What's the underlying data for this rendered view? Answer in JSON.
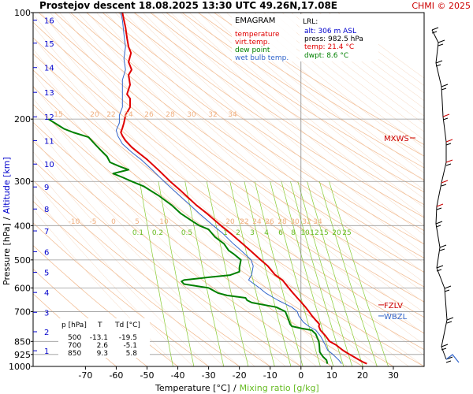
{
  "header": {
    "title": "Prostejov  descent  18.08.2025 13:30 UTC  49.26N,17.08E",
    "credit": "CHMI © 2025"
  },
  "legend": {
    "title": "EMAGRAM",
    "entries": [
      {
        "label": "temperature",
        "color": "#e00000"
      },
      {
        "label": "virt.temp.",
        "color": "#e00000"
      },
      {
        "label": "dew point",
        "color": "#008000"
      },
      {
        "label": "wet bulb temp.",
        "color": "#3366cc"
      }
    ]
  },
  "lrl": {
    "title": "LRL:",
    "alt": "alt: 306 m ASL",
    "press": "press: 982.5 hPa",
    "temp": "temp: 21.4 °C",
    "dwpt": "dwpt: 8.6 °C"
  },
  "levels_table": {
    "headers": [
      "p [hPa]",
      "T",
      "Td [°C]"
    ],
    "rows": [
      [
        "500",
        "-13.1",
        "-19.5"
      ],
      [
        "700",
        "2.6",
        "-5.1"
      ],
      [
        "850",
        "9.3",
        "5.8"
      ]
    ]
  },
  "markers": [
    {
      "label": "MXWS",
      "color": "#cc0000"
    },
    {
      "label": "FZLV",
      "color": "#cc0000"
    },
    {
      "label": "WBZL",
      "color": "#3366cc"
    }
  ],
  "colors": {
    "temperature": "#e00000",
    "dewpoint": "#008000",
    "wetbulb": "#3366cc",
    "isobar": "#999999",
    "altitude_label": "#0000cc",
    "mixing_ratio": "#88cc33",
    "dry_adiabat": "#f0b080",
    "isotherm": "#f2c8a8"
  },
  "chart_data": {
    "type": "line",
    "title": "Prostejov  descent  18.08.2025 13:30 UTC  49.26N,17.08E",
    "xlabel": "Temperature [°C]",
    "xlabel_sep": "/",
    "xlabel2": "Mixing ratio [g/kg]",
    "ylabel": "Pressure [hPa]",
    "ylabel_sep": "/",
    "ylabel2": "Altitude [km]",
    "x_scale": "linear",
    "y_scale": "log-pressure",
    "xlim": [
      -87,
      40
    ],
    "ylim": [
      1000,
      100
    ],
    "x_ticks": [
      -70,
      -60,
      -50,
      -40,
      -30,
      -20,
      -10,
      0,
      10,
      20,
      30
    ],
    "pressure_ticks": [
      100,
      200,
      300,
      400,
      500,
      600,
      700,
      850,
      925,
      1000
    ],
    "altitude_ticks": [
      {
        "km": 1,
        "p": 903
      },
      {
        "km": 2,
        "p": 798
      },
      {
        "km": 3,
        "p": 703
      },
      {
        "km": 4,
        "p": 618
      },
      {
        "km": 5,
        "p": 542
      },
      {
        "km": 6,
        "p": 474
      },
      {
        "km": 7,
        "p": 414
      },
      {
        "km": 8,
        "p": 359
      },
      {
        "km": 9,
        "p": 311
      },
      {
        "km": 10,
        "p": 268
      },
      {
        "km": 11,
        "p": 230
      },
      {
        "km": 12,
        "p": 197
      },
      {
        "km": 13,
        "p": 168
      },
      {
        "km": 14,
        "p": 143
      },
      {
        "km": 15,
        "p": 122
      },
      {
        "km": 16,
        "p": 105
      }
    ],
    "mixing_ratio_labels": [
      "0.1",
      "0.2",
      "0.5",
      "1",
      "2",
      "3",
      "4",
      "6",
      "8",
      "10",
      "12",
      "15",
      "20",
      "25"
    ],
    "isotherm_labels_lower": [
      "-10",
      "-5",
      "0",
      "5",
      "10",
      "20",
      "22",
      "24",
      "26",
      "28",
      "30",
      "32",
      "34"
    ],
    "isotherm_labels_upper": [
      "15",
      "20",
      "22",
      "24",
      "26",
      "28",
      "30",
      "32",
      "34"
    ],
    "series": [
      {
        "key": "temperature",
        "name": "temperature",
        "points": [
          [
            982.5,
            21.4
          ],
          [
            975,
            20.5
          ],
          [
            960,
            19
          ],
          [
            925,
            15.8
          ],
          [
            900,
            13.6
          ],
          [
            870,
            11.4
          ],
          [
            850,
            9.3
          ],
          [
            820,
            8
          ],
          [
            790,
            6.3
          ],
          [
            770,
            5.8
          ],
          [
            760,
            6
          ],
          [
            740,
            4.8
          ],
          [
            720,
            3.6
          ],
          [
            700,
            2.6
          ],
          [
            680,
            1.5
          ],
          [
            650,
            -0.5
          ],
          [
            620,
            -2.6
          ],
          [
            600,
            -4
          ],
          [
            570,
            -6
          ],
          [
            550,
            -8.5
          ],
          [
            520,
            -10.8
          ],
          [
            500,
            -13.1
          ],
          [
            470,
            -16.5
          ],
          [
            450,
            -19
          ],
          [
            420,
            -23
          ],
          [
            400,
            -26
          ],
          [
            370,
            -30.5
          ],
          [
            350,
            -34
          ],
          [
            320,
            -38.8
          ],
          [
            300,
            -42.5
          ],
          [
            280,
            -46
          ],
          [
            260,
            -50
          ],
          [
            248,
            -53
          ],
          [
            240,
            -55
          ],
          [
            230,
            -57
          ],
          [
            223,
            -58
          ],
          [
            218,
            -58.5
          ],
          [
            212,
            -58
          ],
          [
            205,
            -57.5
          ],
          [
            195,
            -57
          ],
          [
            185,
            -55.5
          ],
          [
            175,
            -55.5
          ],
          [
            170,
            -56.5
          ],
          [
            160,
            -55.5
          ],
          [
            150,
            -56
          ],
          [
            145,
            -55
          ],
          [
            138,
            -56
          ],
          [
            130,
            -55.2
          ],
          [
            125,
            -56
          ],
          [
            118,
            -56.5
          ],
          [
            110,
            -57
          ],
          [
            105,
            -57.5
          ],
          [
            100,
            -58
          ]
        ]
      },
      {
        "key": "dewpoint",
        "name": "dew point",
        "points": [
          [
            982.5,
            8.6
          ],
          [
            960,
            8.3
          ],
          [
            940,
            7.2
          ],
          [
            925,
            6.6
          ],
          [
            910,
            6.1
          ],
          [
            880,
            6
          ],
          [
            860,
            5.9
          ],
          [
            850,
            5.8
          ],
          [
            830,
            5.3
          ],
          [
            810,
            4.8
          ],
          [
            790,
            3.5
          ],
          [
            780,
            0
          ],
          [
            770,
            -3
          ],
          [
            760,
            -3.5
          ],
          [
            740,
            -4
          ],
          [
            720,
            -4.5
          ],
          [
            700,
            -5.1
          ],
          [
            680,
            -8
          ],
          [
            660,
            -16
          ],
          [
            650,
            -17.5
          ],
          [
            640,
            -18
          ],
          [
            630,
            -24
          ],
          [
            620,
            -27
          ],
          [
            600,
            -30
          ],
          [
            585,
            -38
          ],
          [
            575,
            -38.8
          ],
          [
            570,
            -38
          ],
          [
            560,
            -30
          ],
          [
            552,
            -23
          ],
          [
            540,
            -20
          ],
          [
            525,
            -20
          ],
          [
            500,
            -19.5
          ],
          [
            480,
            -22
          ],
          [
            470,
            -23.5
          ],
          [
            450,
            -25
          ],
          [
            430,
            -28
          ],
          [
            410,
            -30
          ],
          [
            400,
            -33
          ],
          [
            390,
            -35
          ],
          [
            370,
            -39
          ],
          [
            350,
            -42
          ],
          [
            330,
            -46
          ],
          [
            310,
            -51
          ],
          [
            300,
            -55
          ],
          [
            292,
            -58
          ],
          [
            285,
            -61
          ],
          [
            278,
            -56
          ],
          [
            272,
            -59
          ],
          [
            265,
            -62
          ],
          [
            255,
            -63
          ],
          [
            245,
            -65
          ],
          [
            235,
            -67
          ],
          [
            225,
            -69
          ],
          [
            218,
            -74
          ],
          [
            213,
            -77
          ],
          [
            205,
            -80
          ],
          [
            200,
            -82
          ]
        ]
      },
      {
        "key": "wetbulb",
        "name": "wet bulb temp.",
        "points": [
          [
            982.5,
            13.2
          ],
          [
            960,
            12.3
          ],
          [
            925,
            10.4
          ],
          [
            900,
            8.7
          ],
          [
            870,
            7.9
          ],
          [
            850,
            7.3
          ],
          [
            820,
            6.3
          ],
          [
            790,
            4.8
          ],
          [
            770,
            2.5
          ],
          [
            750,
            0.8
          ],
          [
            720,
            -0.7
          ],
          [
            700,
            -1.2
          ],
          [
            680,
            -3
          ],
          [
            650,
            -7.5
          ],
          [
            620,
            -11.5
          ],
          [
            600,
            -13.5
          ],
          [
            570,
            -17
          ],
          [
            550,
            -16
          ],
          [
            520,
            -15.5
          ],
          [
            500,
            -16.2
          ],
          [
            470,
            -19.5
          ],
          [
            450,
            -22
          ],
          [
            420,
            -25.5
          ],
          [
            400,
            -28.5
          ],
          [
            370,
            -33
          ],
          [
            350,
            -36
          ],
          [
            320,
            -41
          ],
          [
            300,
            -44.5
          ],
          [
            280,
            -48
          ],
          [
            260,
            -52
          ],
          [
            248,
            -55
          ],
          [
            235,
            -58
          ],
          [
            223,
            -59.5
          ],
          [
            215,
            -60
          ],
          [
            205,
            -59
          ],
          [
            195,
            -59
          ],
          [
            185,
            -58
          ],
          [
            175,
            -58
          ],
          [
            165,
            -58
          ],
          [
            155,
            -58
          ],
          [
            145,
            -57
          ],
          [
            135,
            -57.5
          ],
          [
            125,
            -57
          ],
          [
            115,
            -57.5
          ],
          [
            105,
            -58
          ],
          [
            100,
            -58.5
          ]
        ]
      }
    ],
    "annotations": [
      {
        "label": "MXWS",
        "p": 226
      },
      {
        "label": "FZLV",
        "p": 670
      },
      {
        "label": "WBZL",
        "p": 720
      }
    ]
  }
}
